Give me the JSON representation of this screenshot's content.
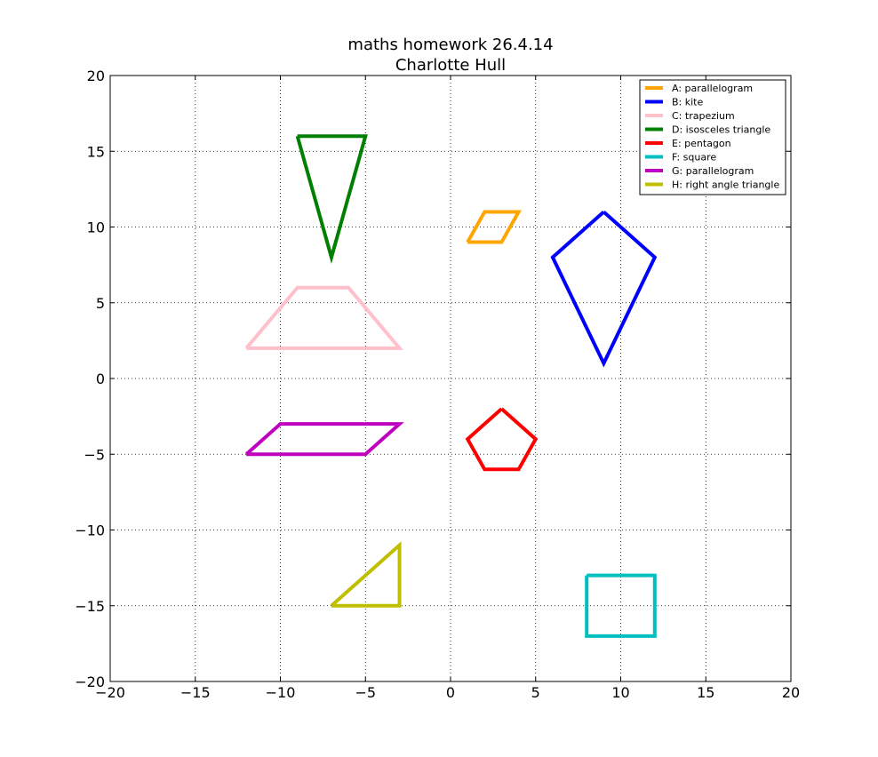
{
  "chart_data": {
    "type": "line",
    "title": "maths homework 26.4.14",
    "subtitle": "Charlotte Hull",
    "xlabel": "",
    "ylabel": "",
    "xlim": [
      -20,
      20
    ],
    "ylim": [
      -20,
      20
    ],
    "xticks": [
      -20,
      -15,
      -10,
      -5,
      0,
      5,
      10,
      15,
      20
    ],
    "yticks": [
      -20,
      -15,
      -10,
      -5,
      0,
      5,
      10,
      15,
      20
    ],
    "xtick_labels": [
      "−20",
      "−15",
      "−10",
      "−5",
      "0",
      "5",
      "10",
      "15",
      "20"
    ],
    "ytick_labels": [
      "−20",
      "−15",
      "−10",
      "−5",
      "0",
      "5",
      "10",
      "15",
      "20"
    ],
    "grid": true,
    "legend_position": "top-right",
    "series": [
      {
        "name": "A: parallelogram",
        "color": "#ffa500",
        "points": [
          [
            1,
            9
          ],
          [
            2,
            11
          ],
          [
            4,
            11
          ],
          [
            3,
            9
          ],
          [
            1,
            9
          ]
        ]
      },
      {
        "name": "B: kite",
        "color": "#0000ff",
        "points": [
          [
            9,
            11
          ],
          [
            12,
            8
          ],
          [
            9,
            1
          ],
          [
            6,
            8
          ],
          [
            9,
            11
          ]
        ]
      },
      {
        "name": "C: trapezium",
        "color": "#ffc0cb",
        "points": [
          [
            -12,
            2
          ],
          [
            -9,
            6
          ],
          [
            -6,
            6
          ],
          [
            -3,
            2
          ],
          [
            -12,
            2
          ]
        ]
      },
      {
        "name": "D: isosceles triangle",
        "color": "#008000",
        "points": [
          [
            -9,
            16
          ],
          [
            -5,
            16
          ],
          [
            -7,
            8
          ],
          [
            -9,
            16
          ]
        ]
      },
      {
        "name": "E: pentagon",
        "color": "#ff0000",
        "points": [
          [
            3,
            -2
          ],
          [
            5,
            -4
          ],
          [
            4,
            -6
          ],
          [
            2,
            -6
          ],
          [
            1,
            -4
          ],
          [
            3,
            -2
          ]
        ]
      },
      {
        "name": "F: square",
        "color": "#00bfbf",
        "points": [
          [
            8,
            -13
          ],
          [
            12,
            -13
          ],
          [
            12,
            -17
          ],
          [
            8,
            -17
          ],
          [
            8,
            -13
          ]
        ]
      },
      {
        "name": "G: parallelogram",
        "color": "#bf00bf",
        "points": [
          [
            -12,
            -5
          ],
          [
            -10,
            -3
          ],
          [
            -3,
            -3
          ],
          [
            -5,
            -5
          ],
          [
            -12,
            -5
          ]
        ]
      },
      {
        "name": "H: right angle triangle",
        "color": "#bfbf00",
        "points": [
          [
            -7,
            -15
          ],
          [
            -3,
            -11
          ],
          [
            -3,
            -15
          ],
          [
            -7,
            -15
          ]
        ]
      }
    ]
  }
}
